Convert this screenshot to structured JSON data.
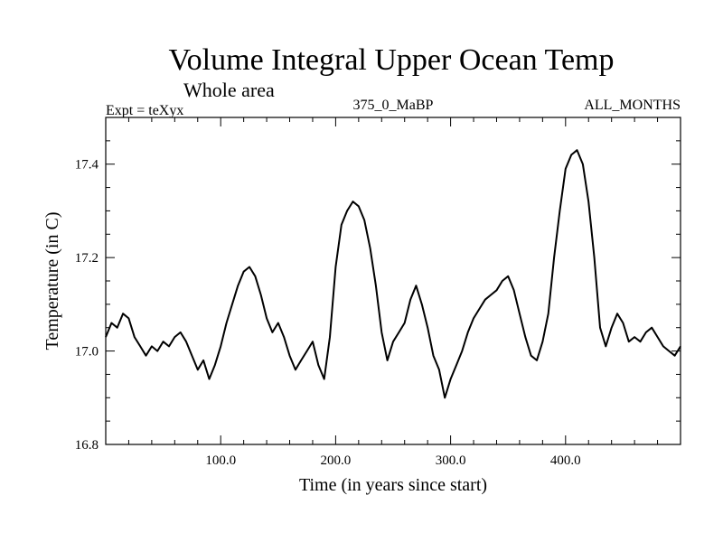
{
  "chart_data": {
    "type": "line",
    "title": "Volume Integral Upper Ocean Temp",
    "subtitle": "Whole area",
    "header_left": "Expt = teXyx",
    "header_center": "375_0_MaBP",
    "header_right": "ALL_MONTHS",
    "xlabel": "Time (in years since start)",
    "ylabel": "Temperature (in C)",
    "xlim": [
      0,
      500
    ],
    "ylim": [
      16.8,
      17.5
    ],
    "x_ticks": [
      100,
      200,
      300,
      400
    ],
    "x_tick_labels": [
      "100.0",
      "200.0",
      "300.0",
      "400.0"
    ],
    "y_ticks": [
      16.8,
      17.0,
      17.2,
      17.4
    ],
    "y_tick_labels": [
      "16.8",
      "17.0",
      "17.2",
      "17.4"
    ],
    "grid": false,
    "series": [
      {
        "color": "#000000",
        "x": [
          0,
          5,
          10,
          15,
          20,
          25,
          30,
          35,
          40,
          45,
          50,
          55,
          60,
          65,
          70,
          75,
          80,
          85,
          90,
          95,
          100,
          105,
          110,
          115,
          120,
          125,
          130,
          135,
          140,
          145,
          150,
          155,
          160,
          165,
          170,
          175,
          180,
          185,
          190,
          195,
          200,
          205,
          210,
          215,
          220,
          225,
          230,
          235,
          240,
          245,
          250,
          255,
          260,
          265,
          270,
          275,
          280,
          285,
          290,
          295,
          300,
          305,
          310,
          315,
          320,
          325,
          330,
          335,
          340,
          345,
          350,
          355,
          360,
          365,
          370,
          375,
          380,
          385,
          390,
          395,
          400,
          405,
          410,
          415,
          420,
          425,
          430,
          435,
          440,
          445,
          450,
          455,
          460,
          465,
          470,
          475,
          480,
          485,
          490,
          495,
          500
        ],
        "values": [
          17.03,
          17.06,
          17.05,
          17.08,
          17.07,
          17.03,
          17.01,
          16.99,
          17.01,
          17.0,
          17.02,
          17.01,
          17.03,
          17.04,
          17.02,
          16.99,
          16.96,
          16.98,
          16.94,
          16.97,
          17.01,
          17.06,
          17.1,
          17.14,
          17.17,
          17.18,
          17.16,
          17.12,
          17.07,
          17.04,
          17.06,
          17.03,
          16.99,
          16.96,
          16.98,
          17.0,
          17.02,
          16.97,
          16.94,
          17.03,
          17.18,
          17.27,
          17.3,
          17.32,
          17.31,
          17.28,
          17.22,
          17.14,
          17.04,
          16.98,
          17.02,
          17.04,
          17.06,
          17.11,
          17.14,
          17.1,
          17.05,
          16.99,
          16.96,
          16.9,
          16.94,
          16.97,
          17.0,
          17.04,
          17.07,
          17.09,
          17.11,
          17.12,
          17.13,
          17.15,
          17.16,
          17.13,
          17.08,
          17.03,
          16.99,
          16.98,
          17.02,
          17.08,
          17.2,
          17.3,
          17.39,
          17.42,
          17.43,
          17.4,
          17.32,
          17.2,
          17.05,
          17.01,
          17.05,
          17.08,
          17.06,
          17.02,
          17.03,
          17.02,
          17.04,
          17.05,
          17.03,
          17.01,
          17.0,
          16.99,
          17.01
        ]
      }
    ]
  }
}
